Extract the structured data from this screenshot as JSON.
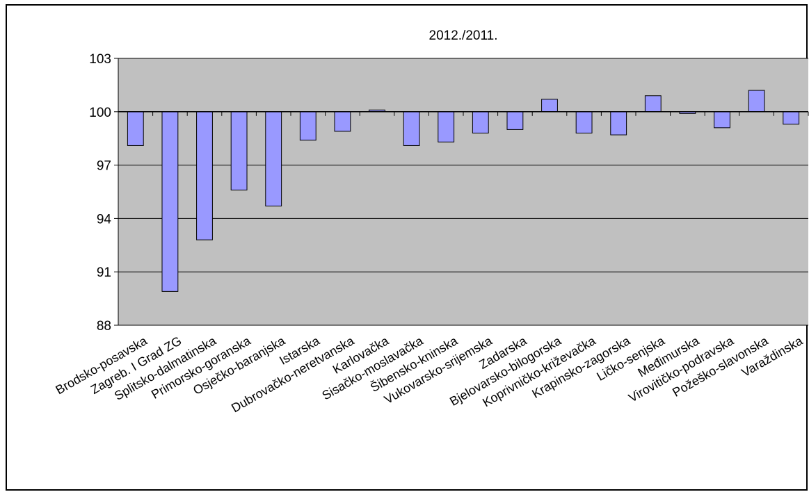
{
  "chart_data": {
    "type": "bar",
    "title": "2012./2011.",
    "xlabel": "",
    "ylabel": "",
    "ylim": [
      88,
      103
    ],
    "yticks": [
      88,
      91,
      94,
      97,
      100,
      103
    ],
    "baseline": 100,
    "grid": true,
    "legend": "none",
    "categories": [
      "Brodsko-posavska",
      "Zagreb. I Grad ZG",
      "Splitsko-dalmatinska",
      "Primorsko-goranska",
      "Osječko-baranjska",
      "Istarska",
      "Dubrovačko-neretvanska",
      "Karlovačka",
      "Sisačko-moslavačka",
      "Šibensko-kninska",
      "Vukovarsko-srijemska",
      "Zadarska",
      "Bjelovarsko-bilogorska",
      "Koprivničko-križevačka",
      "Krapinsko-zagorska",
      "Ličko-senjska",
      "Međimurska",
      "Virovitičko-podravska",
      "Požeško-slavonska",
      "Varaždinska"
    ],
    "values": [
      98.1,
      89.9,
      92.8,
      95.6,
      94.7,
      98.4,
      98.9,
      100.1,
      98.1,
      98.3,
      98.8,
      99.0,
      100.7,
      98.8,
      98.7,
      100.9,
      99.9,
      99.1,
      101.2,
      99.3
    ],
    "colors": {
      "bar_fill": "#9999ff",
      "bar_stroke": "#000000",
      "plot_bg": "#c0c0c0",
      "grid": "#000000"
    }
  }
}
